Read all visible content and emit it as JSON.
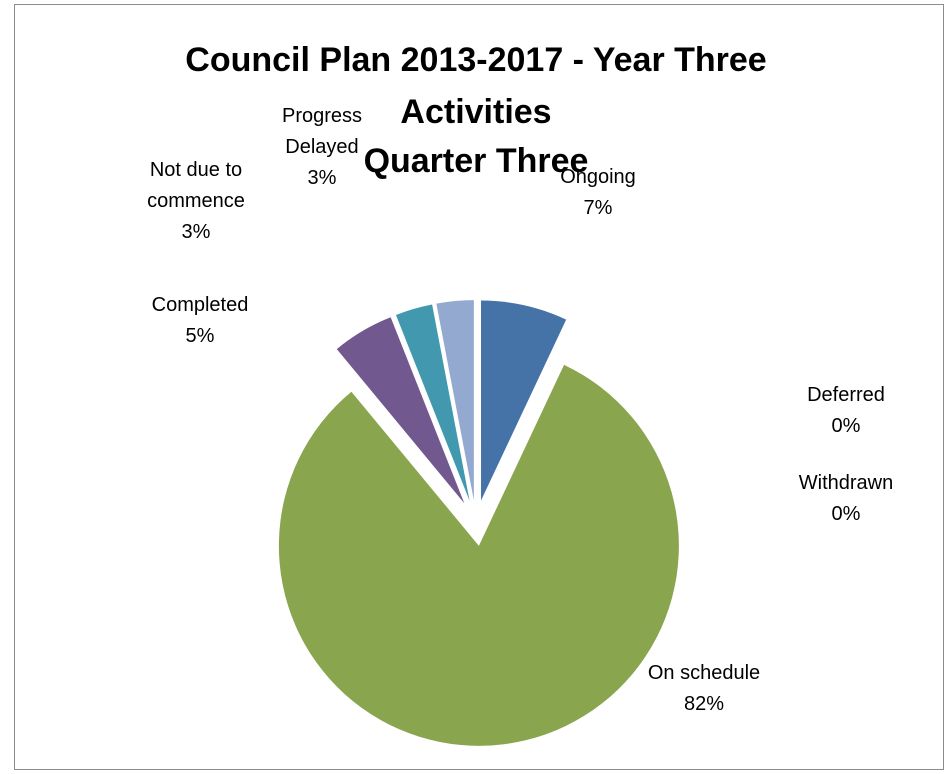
{
  "chart_data": {
    "type": "pie",
    "title_lines": [
      "Council Plan 2013-2017 - Year Three",
      "Activities",
      "Quarter Three"
    ],
    "slices": [
      {
        "label": "Ongoing",
        "percent_label": "7%",
        "value": 7,
        "color": "#4572a7",
        "exploded": true
      },
      {
        "label": "On schedule",
        "percent_label": "82%",
        "value": 82,
        "color": "#89a54e",
        "exploded": true
      },
      {
        "label": "Deferred",
        "percent_label": "0%",
        "value": 0,
        "color": "#aa4643",
        "exploded": false
      },
      {
        "label": "Withdrawn",
        "percent_label": "0%",
        "value": 0,
        "color": "#db843d",
        "exploded": false
      },
      {
        "label": "Completed",
        "percent_label": "5%",
        "value": 5,
        "color": "#71588f",
        "exploded": true
      },
      {
        "label": "Not due to commence",
        "percent_label": "3%",
        "value": 3,
        "color": "#4198af",
        "exploded": true
      },
      {
        "label": "Progress Delayed",
        "percent_label": "3%",
        "value": 3,
        "color": "#93a9cf",
        "exploded": true
      }
    ],
    "legend": "none (data labels)"
  }
}
